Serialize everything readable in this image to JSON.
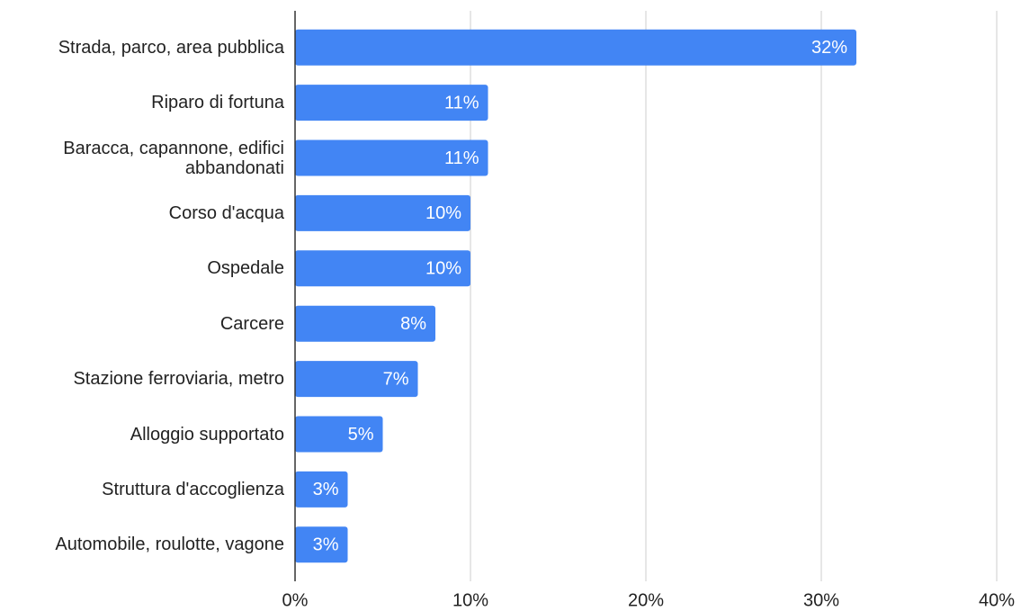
{
  "chart_data": {
    "type": "bar",
    "orientation": "horizontal",
    "categories": [
      "Strada, parco, area pubblica",
      "Riparo di fortuna",
      "Baracca, capannone, edifici abbandonati",
      "Corso d'acqua",
      "Ospedale",
      "Carcere",
      "Stazione ferroviaria, metro",
      "Alloggio supportato",
      "Struttura d'accoglienza",
      "Automobile, roulotte, vagone"
    ],
    "values": [
      32,
      11,
      11,
      10,
      10,
      8,
      7,
      5,
      3,
      3
    ],
    "value_labels": [
      "32%",
      "11%",
      "11%",
      "10%",
      "10%",
      "8%",
      "7%",
      "5%",
      "3%",
      "3%"
    ],
    "color": "#4285f4",
    "xlim": [
      0,
      40
    ],
    "xticks": [
      {
        "value": 0,
        "label": "0%"
      },
      {
        "value": 10,
        "label": "10%"
      },
      {
        "value": 20,
        "label": "20%"
      },
      {
        "value": 30,
        "label": "30%"
      },
      {
        "value": 40,
        "label": "40%"
      }
    ],
    "grid": true
  }
}
